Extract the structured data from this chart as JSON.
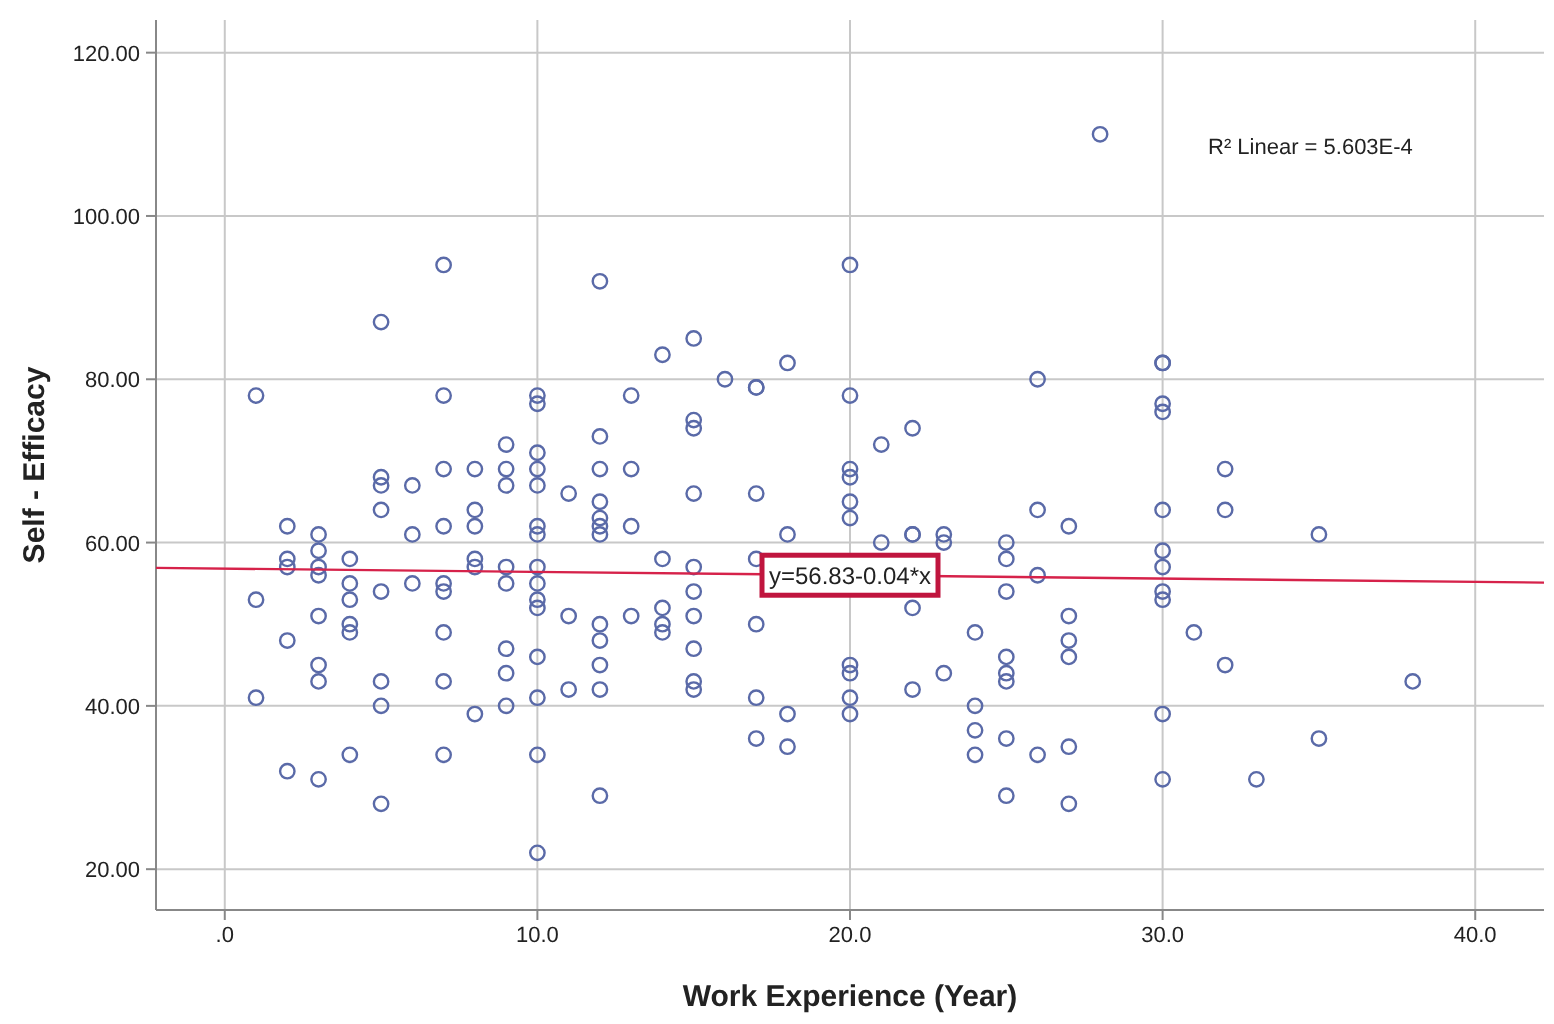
{
  "chart_data": {
    "type": "scatter",
    "xlabel": "Work Experience (Year)",
    "ylabel": "Self - Efficacy",
    "xlim": [
      -2.2,
      42.2
    ],
    "ylim": [
      15,
      124
    ],
    "xticks": [
      {
        "value": 0,
        "label": ".0"
      },
      {
        "value": 10,
        "label": "10.0"
      },
      {
        "value": 20,
        "label": "20.0"
      },
      {
        "value": 30,
        "label": "30.0"
      },
      {
        "value": 40,
        "label": "40.0"
      }
    ],
    "yticks": [
      {
        "value": 20,
        "label": "20.00"
      },
      {
        "value": 40,
        "label": "40.00"
      },
      {
        "value": 60,
        "label": "60.00"
      },
      {
        "value": 80,
        "label": "80.00"
      },
      {
        "value": 100,
        "label": "100.00"
      },
      {
        "value": 120,
        "label": "120.00"
      }
    ],
    "grid": true,
    "series": [
      {
        "color": "#5a6aa8",
        "marker": "circle",
        "x": [
          1,
          1,
          1,
          2,
          2,
          2,
          2,
          2,
          3,
          3,
          3,
          3,
          3,
          3,
          3,
          3,
          4,
          4,
          4,
          4,
          4,
          4,
          5,
          5,
          5,
          5,
          5,
          5,
          5,
          5,
          6,
          6,
          6,
          7,
          7,
          7,
          7,
          7,
          7,
          7,
          7,
          7,
          8,
          8,
          8,
          8,
          8,
          8,
          9,
          9,
          9,
          9,
          9,
          9,
          9,
          9,
          10,
          10,
          10,
          10,
          10,
          10,
          10,
          10,
          10,
          10,
          10,
          10,
          10,
          10,
          10,
          11,
          11,
          11,
          12,
          12,
          12,
          12,
          12,
          12,
          12,
          12,
          12,
          12,
          12,
          12,
          13,
          13,
          13,
          13,
          14,
          14,
          14,
          14,
          14,
          15,
          15,
          15,
          15,
          15,
          15,
          15,
          15,
          15,
          15,
          16,
          17,
          17,
          17,
          17,
          17,
          17,
          17,
          18,
          18,
          18,
          18,
          20,
          20,
          20,
          20,
          20,
          20,
          20,
          20,
          20,
          20,
          21,
          21,
          22,
          22,
          22,
          22,
          22,
          23,
          23,
          23,
          24,
          24,
          24,
          24,
          25,
          25,
          25,
          25,
          25,
          25,
          25,
          25,
          26,
          26,
          26,
          26,
          27,
          27,
          27,
          27,
          27,
          27,
          28,
          30,
          30,
          30,
          30,
          30,
          30,
          30,
          30,
          30,
          30,
          30,
          31,
          32,
          32,
          32,
          33,
          35,
          35,
          38
        ],
        "values": [
          78,
          53,
          41,
          62,
          58,
          57,
          48,
          32,
          61,
          59,
          57,
          56,
          51,
          45,
          43,
          31,
          58,
          55,
          53,
          50,
          49,
          34,
          87,
          68,
          67,
          64,
          54,
          43,
          40,
          28,
          67,
          61,
          55,
          94,
          78,
          69,
          62,
          55,
          54,
          49,
          43,
          34,
          69,
          64,
          62,
          58,
          57,
          39,
          72,
          69,
          67,
          57,
          55,
          47,
          44,
          40,
          78,
          77,
          71,
          69,
          67,
          62,
          61,
          57,
          55,
          53,
          52,
          46,
          41,
          34,
          22,
          66,
          51,
          42,
          92,
          73,
          69,
          65,
          63,
          62,
          61,
          50,
          48,
          45,
          42,
          29,
          78,
          69,
          62,
          51,
          83,
          58,
          52,
          50,
          49,
          85,
          75,
          74,
          66,
          57,
          54,
          51,
          47,
          43,
          42,
          80,
          79,
          79,
          66,
          58,
          50,
          41,
          36,
          82,
          61,
          39,
          35,
          94,
          78,
          69,
          68,
          65,
          63,
          45,
          44,
          41,
          39,
          72,
          60,
          74,
          61,
          61,
          52,
          42,
          61,
          60,
          44,
          49,
          40,
          37,
          34,
          60,
          58,
          54,
          46,
          44,
          43,
          36,
          29,
          80,
          64,
          56,
          34,
          62,
          51,
          48,
          46,
          35,
          28,
          110,
          82,
          82,
          77,
          76,
          64,
          59,
          57,
          54,
          53,
          39,
          31,
          49,
          69,
          64,
          45,
          31,
          61,
          36,
          43
        ]
      },
      {
        "type": "line",
        "color": "#d6224a",
        "x": [
          -2.2,
          42.2
        ],
        "values": [
          56.9,
          55.1
        ]
      }
    ],
    "annotations": [
      "R² Linear = 5.603E-4",
      {
        "text": "y=56.83-0.04*x",
        "x": 20,
        "y": 56
      }
    ]
  }
}
